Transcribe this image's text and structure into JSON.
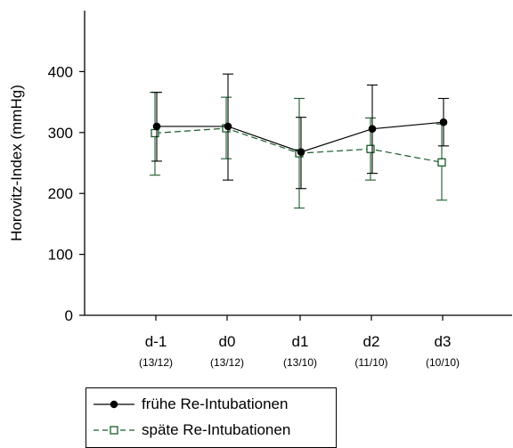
{
  "chart_data": {
    "type": "line",
    "title": "",
    "ylabel": "Horovitz-Index (mmHg)",
    "xlabel": "",
    "ylim": [
      0,
      500
    ],
    "yticks": [
      0,
      100,
      200,
      300,
      400
    ],
    "categories": [
      "d-1",
      "d0",
      "d1",
      "d2",
      "d3"
    ],
    "sublabels": [
      "(13/12)",
      "(13/12)",
      "(13/10)",
      "(11/10)",
      "(10/10)"
    ],
    "legend_position": "bottom-left",
    "series": [
      {
        "name": "frühe Re-Intubationen",
        "color": "#000000",
        "marker": "filled-circle",
        "line": "solid",
        "values": [
          310,
          310,
          268,
          306,
          317
        ],
        "err_low": [
          253,
          222,
          208,
          233,
          278
        ],
        "err_high": [
          366,
          396,
          325,
          378,
          356
        ]
      },
      {
        "name": "späte Re-Intubationen",
        "color": "#1a5c2a",
        "marker": "open-square",
        "line": "dashed",
        "values": [
          299,
          307,
          266,
          273,
          251
        ],
        "err_low": [
          230,
          257,
          176,
          222,
          189
        ],
        "err_high": [
          366,
          358,
          356,
          324,
          314
        ]
      }
    ]
  }
}
